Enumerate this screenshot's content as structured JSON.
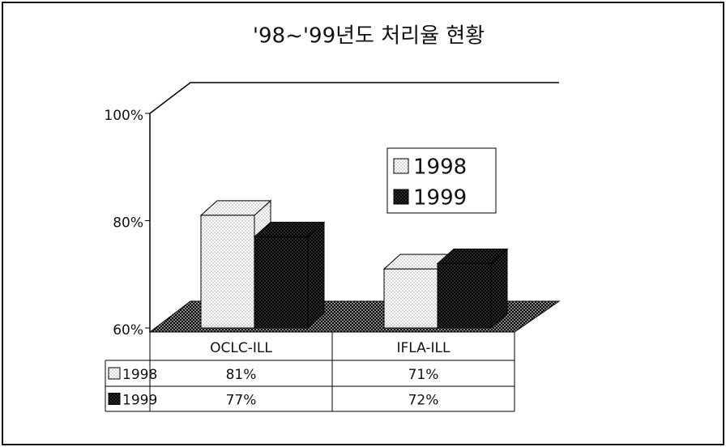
{
  "chart_data": {
    "type": "bar3d",
    "title": "'98~'99년도 처리율 현황",
    "categories": [
      "OCLC-ILL",
      "IFLA-ILL"
    ],
    "series": [
      {
        "name": "1998",
        "color": "#d8d8d8",
        "values": [
          81,
          71
        ],
        "value_labels": [
          "81%",
          "71%"
        ]
      },
      {
        "name": "1999",
        "color": "#2a2a2a",
        "values": [
          77,
          72
        ],
        "value_labels": [
          "77%",
          "72%"
        ]
      }
    ],
    "ylim": [
      60,
      100
    ],
    "yticks": [
      {
        "value": 60,
        "label": "60%"
      },
      {
        "value": 80,
        "label": "80%"
      },
      {
        "value": 100,
        "label": "100%"
      }
    ],
    "legend": "upper right"
  }
}
